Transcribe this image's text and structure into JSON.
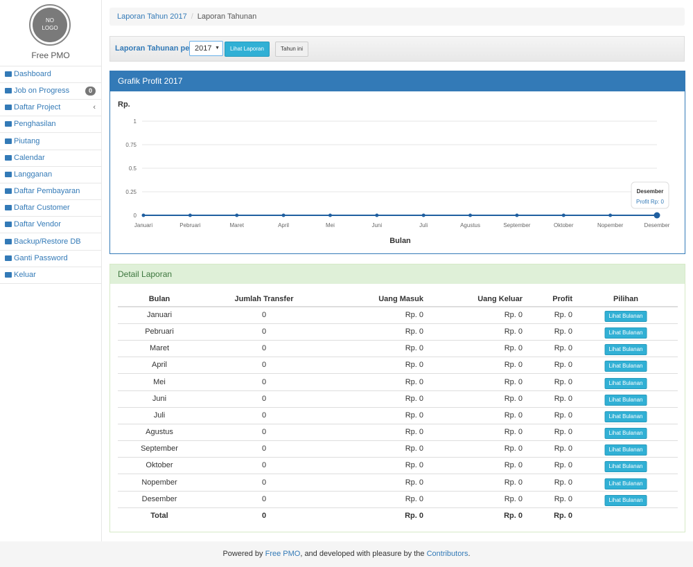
{
  "sidebar": {
    "logo": [
      "NO",
      "LOGO"
    ],
    "app_name": "Free PMO",
    "menu": [
      {
        "label": "Dashboard"
      },
      {
        "label": "Job on Progress",
        "badge": "0"
      },
      {
        "label": "Daftar Project"
      },
      {
        "label": "Penghasilan"
      },
      {
        "label": "Piutang"
      },
      {
        "label": "Calendar"
      },
      {
        "label": "Langganan"
      },
      {
        "label": "Daftar Pembayaran"
      },
      {
        "label": "Daftar Customer"
      },
      {
        "label": "Daftar Vendor"
      },
      {
        "label": "Backup/Restore DB"
      },
      {
        "label": "Ganti Password"
      },
      {
        "label": "Keluar"
      }
    ]
  },
  "breadcrumb": [
    "Laporan Tahun 2017",
    "Laporan Tahunan"
  ],
  "toolbar": {
    "label": "Laporan Tahunan per",
    "year": "2017",
    "buttons": [
      "Lihat Laporan",
      "Tahun ini"
    ]
  },
  "chart_data": {
    "type": "line",
    "title": "Grafik Profit 2017",
    "y_label": "Rp.",
    "x_label": "Bulan",
    "categories": [
      "Januari",
      "Pebruari",
      "Maret",
      "April",
      "Mei",
      "Juni",
      "Juli",
      "Agustus",
      "September",
      "Oktober",
      "Nopember",
      "Desember"
    ],
    "values": [
      0,
      0,
      0,
      0,
      0,
      0,
      0,
      0,
      0,
      0,
      0,
      0
    ],
    "color": "#1f5fa0",
    "ylim": [
      0,
      1
    ],
    "yticks": [
      0,
      0.25,
      0.5,
      0.75,
      1
    ],
    "grid": true,
    "tooltip": {
      "title": "Desember",
      "text": "Profit Rp: 0"
    }
  },
  "detail": {
    "title": "Detail Laporan",
    "columns": [
      "Bulan",
      "Jumlah Transfer",
      "Uang Masuk",
      "Uang Keluar",
      "Profit",
      "Pilihan"
    ],
    "rows": [
      [
        "Januari",
        "0",
        "Rp. 0",
        "Rp. 0",
        "Rp. 0",
        "Lihat Bulanan"
      ],
      [
        "Pebruari",
        "0",
        "Rp. 0",
        "Rp. 0",
        "Rp. 0",
        "Lihat Bulanan"
      ],
      [
        "Maret",
        "0",
        "Rp. 0",
        "Rp. 0",
        "Rp. 0",
        "Lihat Bulanan"
      ],
      [
        "April",
        "0",
        "Rp. 0",
        "Rp. 0",
        "Rp. 0",
        "Lihat Bulanan"
      ],
      [
        "Mei",
        "0",
        "Rp. 0",
        "Rp. 0",
        "Rp. 0",
        "Lihat Bulanan"
      ],
      [
        "Juni",
        "0",
        "Rp. 0",
        "Rp. 0",
        "Rp. 0",
        "Lihat Bulanan"
      ],
      [
        "Juli",
        "0",
        "Rp. 0",
        "Rp. 0",
        "Rp. 0",
        "Lihat Bulanan"
      ],
      [
        "Agustus",
        "0",
        "Rp. 0",
        "Rp. 0",
        "Rp. 0",
        "Lihat Bulanan"
      ],
      [
        "September",
        "0",
        "Rp. 0",
        "Rp. 0",
        "Rp. 0",
        "Lihat Bulanan"
      ],
      [
        "Oktober",
        "0",
        "Rp. 0",
        "Rp. 0",
        "Rp. 0",
        "Lihat Bulanan"
      ],
      [
        "Nopember",
        "0",
        "Rp. 0",
        "Rp. 0",
        "Rp. 0",
        "Lihat Bulanan"
      ],
      [
        "Desember",
        "0",
        "Rp. 0",
        "Rp. 0",
        "Rp. 0",
        "Lihat Bulanan"
      ]
    ],
    "total": [
      "Total",
      "0",
      "Rp. 0",
      "Rp. 0",
      "Rp. 0"
    ]
  },
  "footer": [
    "Powered by ",
    "Free PMO",
    ", and developed with pleasure by the ",
    "Contributors",
    "."
  ]
}
